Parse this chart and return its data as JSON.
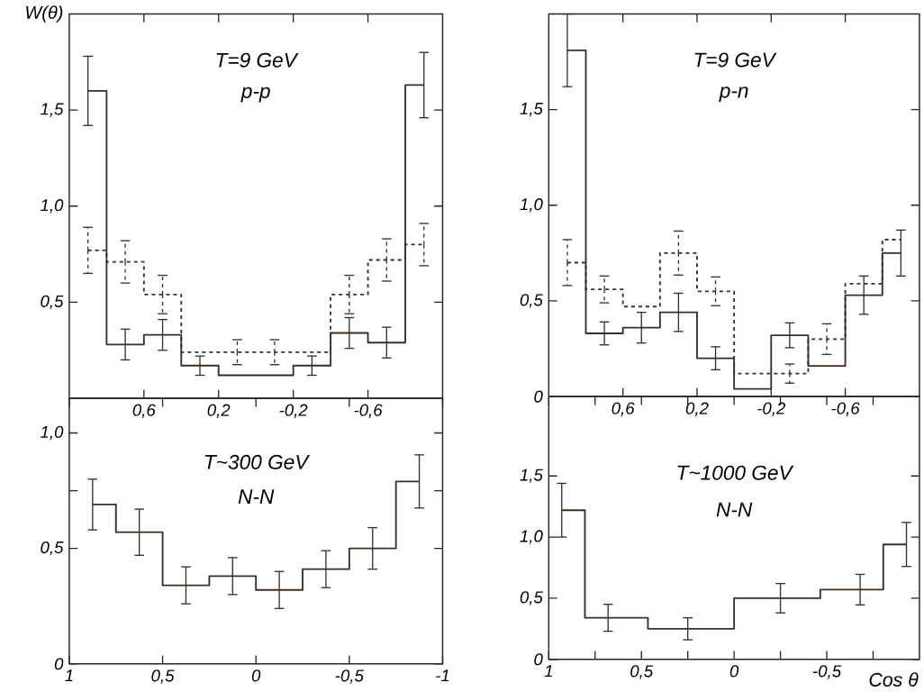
{
  "chart_data": [
    {
      "type": "step",
      "title": "T=9 GeV",
      "subtitle": "p-p",
      "ylabel": "W(θ)",
      "x": [
        0.9,
        0.7,
        0.5,
        0.3,
        0.1,
        -0.1,
        -0.3,
        -0.5,
        -0.7,
        -0.9
      ],
      "series": [
        {
          "color": "#3a2e26",
          "line_style": "solid",
          "values": [
            1.6,
            0.28,
            0.33,
            0.17,
            0.12,
            0.12,
            0.17,
            0.34,
            0.29,
            1.63
          ],
          "errors": [
            0.18,
            0.08,
            0.08,
            0.05,
            null,
            null,
            0.05,
            0.08,
            0.08,
            0.17
          ]
        },
        {
          "color": "#3a2e26",
          "line_style": "dashed",
          "values": [
            0.77,
            0.71,
            0.54,
            0.24,
            0.24,
            0.24,
            0.24,
            0.54,
            0.72,
            0.8
          ],
          "errors": [
            0.12,
            0.11,
            0.1,
            null,
            0.065,
            0.065,
            null,
            0.1,
            0.11,
            0.11
          ]
        }
      ],
      "xlim": [
        1,
        -1
      ],
      "ylim": [
        0,
        2.0
      ],
      "xticks": [
        {
          "value": 0.6,
          "label": "0,6"
        },
        {
          "value": 0.2,
          "label": "0,2"
        },
        {
          "value": -0.2,
          "label": "-0,2"
        },
        {
          "value": -0.6,
          "label": "-0,6"
        }
      ],
      "yticks": [
        {
          "value": 0.5,
          "label": "0,5"
        },
        {
          "value": 1.0,
          "label": "1,0"
        },
        {
          "value": 1.5,
          "label": "1,5"
        }
      ]
    },
    {
      "type": "step",
      "title": "T=9 GeV",
      "subtitle": "p-n",
      "x": [
        0.9,
        0.7,
        0.5,
        0.3,
        0.1,
        -0.1,
        -0.3,
        -0.5,
        -0.7,
        -0.9
      ],
      "series": [
        {
          "color": "#3a2e26",
          "line_style": "solid",
          "values": [
            1.81,
            0.33,
            0.36,
            0.44,
            0.2,
            0.04,
            0.32,
            0.16,
            0.53,
            0.75
          ],
          "errors": [
            0.19,
            0.06,
            0.08,
            0.1,
            0.06,
            null,
            0.065,
            null,
            0.1,
            0.12
          ]
        },
        {
          "color": "#3a2e26",
          "line_style": "dashed",
          "values": [
            0.7,
            0.56,
            0.47,
            0.75,
            0.55,
            0.12,
            0.12,
            0.3,
            0.59,
            0.82
          ],
          "errors": [
            0.12,
            0.07,
            null,
            0.115,
            0.075,
            null,
            0.05,
            0.08,
            null,
            null
          ]
        }
      ],
      "xlim": [
        1,
        -1
      ],
      "ylim": [
        0,
        2.0
      ],
      "xticks": [
        {
          "value": 0.6,
          "label": "0,6"
        },
        {
          "value": 0.2,
          "label": "0,2"
        },
        {
          "value": -0.2,
          "label": "-0,2"
        },
        {
          "value": -0.6,
          "label": "-0,6"
        }
      ],
      "yticks": [
        0,
        {
          "value": 0.5,
          "label": "0,5"
        },
        {
          "value": 1.0,
          "label": "1,0"
        },
        {
          "value": 1.5,
          "label": "1,5"
        }
      ]
    },
    {
      "type": "step",
      "title": "T~300 GeV",
      "subtitle": "N-N",
      "x": [
        0.875,
        0.625,
        0.375,
        0.125,
        -0.125,
        -0.375,
        -0.625,
        -0.875
      ],
      "series": [
        {
          "color": "#3a2e26",
          "line_style": "solid",
          "values": [
            0.69,
            0.57,
            0.34,
            0.38,
            0.32,
            0.41,
            0.5,
            0.79
          ],
          "errors": [
            0.11,
            0.1,
            0.08,
            0.08,
            0.08,
            0.08,
            0.09,
            0.115
          ]
        }
      ],
      "xlim": [
        1,
        -1
      ],
      "ylim": [
        0,
        1.15
      ],
      "xticks": [
        1,
        {
          "value": 0.5,
          "label": "0,5"
        },
        0,
        {
          "value": -0.5,
          "label": "-0,5"
        },
        -1
      ],
      "yticks": [
        0,
        {
          "value": 0.5,
          "label": "0,5"
        },
        {
          "value": 0.75,
          "label": null
        },
        {
          "value": 1.0,
          "label": "1,0"
        }
      ]
    },
    {
      "type": "step",
      "title": "T~1000 GeV",
      "subtitle": "N-N",
      "xlabel": "Cos θ",
      "x": [
        0.93,
        0.68,
        0.25,
        -0.25,
        -0.68,
        -0.93
      ],
      "series": [
        {
          "color": "#3a2e26",
          "line_style": "solid",
          "values": [
            1.22,
            0.34,
            0.25,
            0.5,
            0.57,
            0.94
          ],
          "errors": [
            0.22,
            0.11,
            0.09,
            0.12,
            0.125,
            0.18
          ]
        }
      ],
      "xlim": [
        1,
        -1
      ],
      "ylim": [
        0,
        2.15
      ],
      "xticks": [
        1,
        {
          "value": 0.75,
          "label": null
        },
        {
          "value": 0.5,
          "label": "0,5"
        },
        {
          "value": 0.25,
          "label": null
        },
        0,
        {
          "value": -0.25,
          "label": null
        },
        {
          "value": -0.5,
          "label": "-0,5"
        },
        {
          "value": -0.75,
          "label": null
        }
      ],
      "yticks": [
        0,
        {
          "value": 0.5,
          "label": "0,5"
        },
        {
          "value": 1.0,
          "label": "1,0"
        },
        {
          "value": 1.5,
          "label": "1,5"
        }
      ]
    }
  ]
}
